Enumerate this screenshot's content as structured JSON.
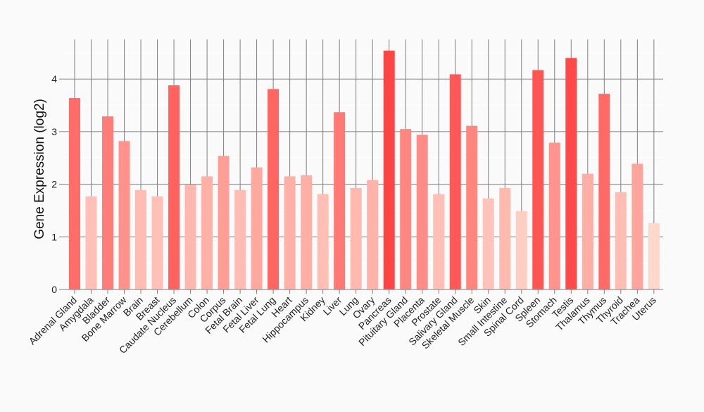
{
  "chart_data": {
    "type": "bar",
    "title": "",
    "xlabel": "",
    "ylabel": "Gene Expression (log2)",
    "ylim": [
      0,
      4.75
    ],
    "yticks": [
      0,
      1,
      2,
      3,
      4
    ],
    "grid": true,
    "categories": [
      "Adrenal Gland",
      "Amygdala",
      "Bladder",
      "Bone Marrow",
      "Brain",
      "Breast",
      "Caudate Nucleus",
      "Cerebellum",
      "Colon",
      "Corpus",
      "Fetal Brain",
      "Fetal Liver",
      "Fetal Lung",
      "Heart",
      "Hippocampus",
      "Kidney",
      "Liver",
      "Lung",
      "Ovary",
      "Pancreas",
      "Pituitary Gland",
      "Placenta",
      "Prostate",
      "Salivary Gland",
      "Skeletal Muscle",
      "Skin",
      "Small Intestine",
      "Spinal Cord",
      "Spleen",
      "Stomach",
      "Testis",
      "Thalamus",
      "Thymus",
      "Thyroid",
      "Trachea",
      "Uterus"
    ],
    "values": [
      3.64,
      1.77,
      3.29,
      2.82,
      1.89,
      1.77,
      3.88,
      1.99,
      2.15,
      2.54,
      1.89,
      2.32,
      3.81,
      2.15,
      2.17,
      1.81,
      3.37,
      1.93,
      2.08,
      4.54,
      3.05,
      2.94,
      1.81,
      4.09,
      3.11,
      1.73,
      1.93,
      1.49,
      4.17,
      2.79,
      4.4,
      2.2,
      3.72,
      1.85,
      2.39,
      1.26
    ],
    "color_low": "#ffd8cc",
    "color_high": "#ff4444"
  }
}
